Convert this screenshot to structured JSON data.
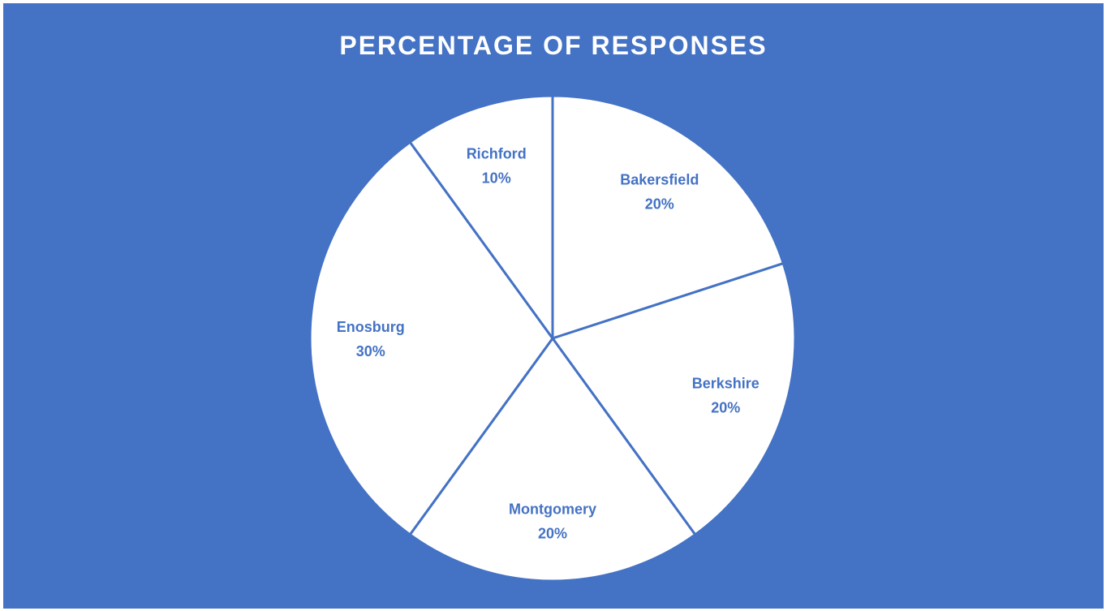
{
  "chart_data": {
    "type": "pie",
    "title": "PERCENTAGE OF RESPONSES",
    "start_angle_deg": 0,
    "direction": "clockwise",
    "slices": [
      {
        "label": "Bakersfield",
        "value": 20,
        "value_label": "20%"
      },
      {
        "label": "Berkshire",
        "value": 20,
        "value_label": "20%"
      },
      {
        "label": "Montgomery",
        "value": 20,
        "value_label": "20%"
      },
      {
        "label": "Enosburg",
        "value": 30,
        "value_label": "30%"
      },
      {
        "label": "Richford",
        "value": 10,
        "value_label": "10%"
      }
    ],
    "legend": "none"
  },
  "colors": {
    "background": "#4472c4",
    "slice_fill": "#ffffff",
    "slice_border": "#4472c4",
    "label_text": "#4472c4",
    "title_text": "#ffffff"
  }
}
